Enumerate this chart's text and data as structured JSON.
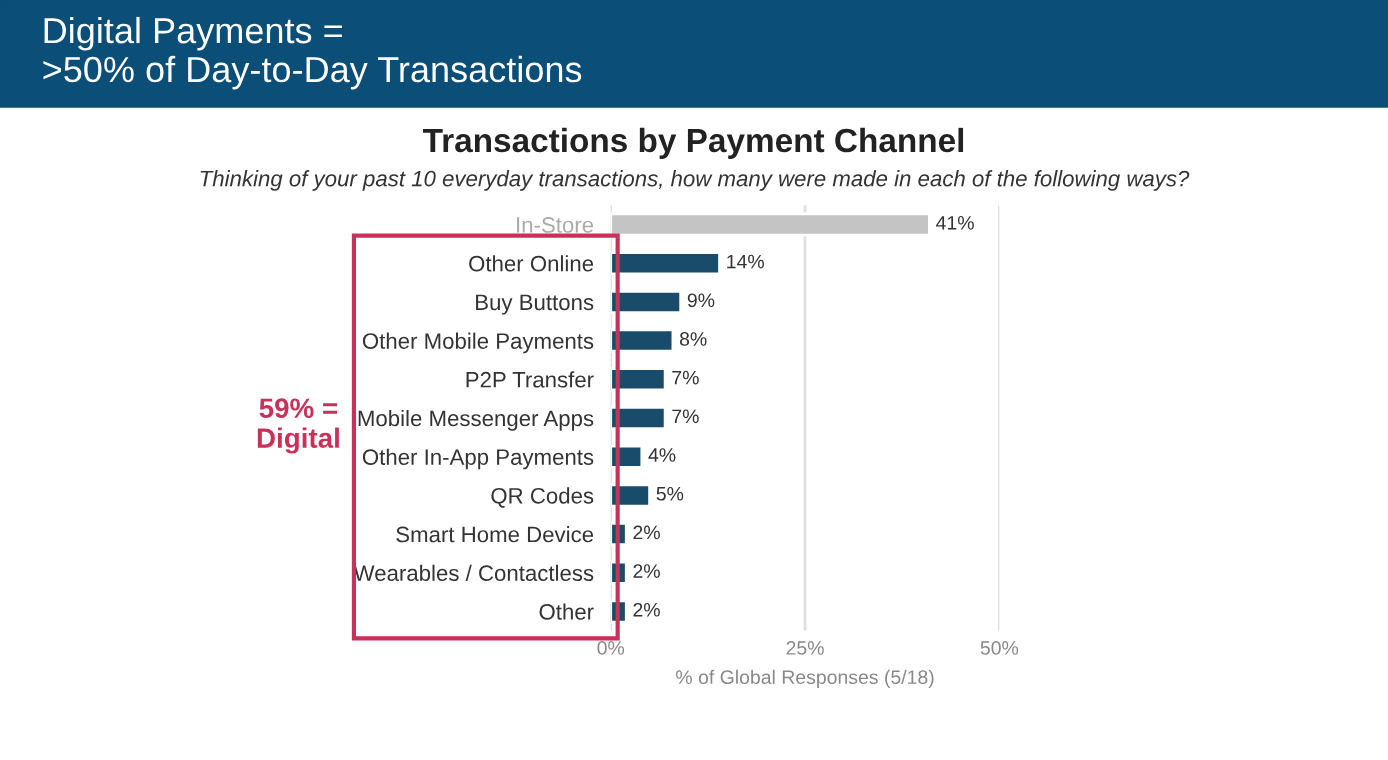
{
  "chart_data": {
    "type": "bar",
    "orientation": "horizontal",
    "title": "Transactions by Payment Channel",
    "subtitle": "Thinking of your past 10 everyday transactions, how many were made in each of the following ways?",
    "xlabel": "% of Global Responses (5/18)",
    "annotations": [
      "Digital Payments =\n>50% of Day-to-Day Transactions",
      "59% =\nDigital"
    ],
    "categories": [
      "In-Store",
      "Other Online",
      "Buy Buttons",
      "Other Mobile Payments",
      "P2P Transfer",
      "Mobile Messenger Apps",
      "Other In-App Payments",
      "QR Codes",
      "Smart Home Device",
      "Wearables / Contactless",
      "Other"
    ],
    "values": [
      41,
      14,
      9,
      8,
      7,
      7,
      4,
      5,
      2,
      2,
      2
    ],
    "value_labels": [
      "41%",
      "14%",
      "9%",
      "8%",
      "7%",
      "7%",
      "4%",
      "5%",
      "2%",
      "2%",
      "2%"
    ],
    "colors": [
      "#c4c4c4",
      "#0b4f78",
      "#0b4f78",
      "#0b4f78",
      "#0b4f78",
      "#0b4f78",
      "#0b4f78",
      "#0b4f78",
      "#0b4f78",
      "#0b4f78",
      "#0b4f78"
    ],
    "xlim": [
      0,
      50
    ],
    "xticks": [
      {
        "value": 0,
        "label": "0%"
      },
      {
        "value": 25,
        "label": "25%"
      },
      {
        "value": 50,
        "label": "50%"
      }
    ],
    "grid": "x",
    "legend": false
  }
}
